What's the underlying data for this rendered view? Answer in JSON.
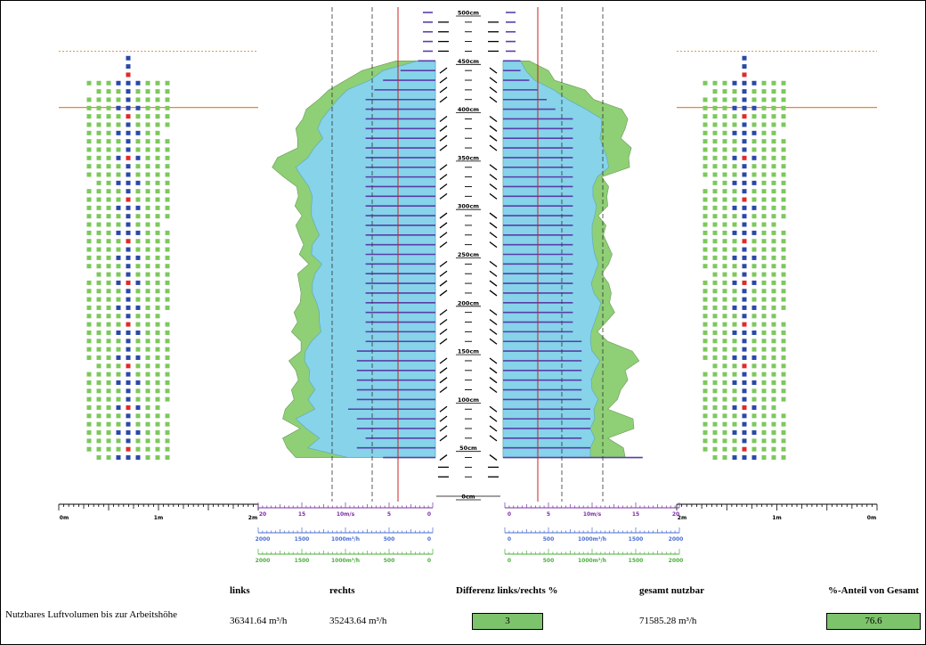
{
  "colors": {
    "green_area": "#8fcf76",
    "blue_area": "#86d3ea",
    "bar_purple": "#5a3ea8",
    "red_line": "#cc2222",
    "orange_line": "#e38a2b",
    "square_green": "#7cc85c",
    "square_blue": "#2a48a8",
    "square_red": "#e02a2a",
    "axis_purple": "#7b2fa8",
    "axis_blue": "#4a6ed0",
    "axis_green": "#4caf3c",
    "summary_box": "#7dc36b"
  },
  "chart_data": {
    "type": "area",
    "height_axis": {
      "unit": "cm",
      "range": [
        0,
        500
      ],
      "labeled_ticks": [
        "500cm",
        "450cm",
        "400cm",
        "350cm",
        "300cm",
        "250cm",
        "200cm",
        "150cm",
        "100cm",
        "50cm",
        "0cm"
      ]
    },
    "distance_axis": {
      "labels": [
        "0m",
        "1m",
        "2m"
      ],
      "range_m": [
        0,
        2
      ]
    },
    "velocity_axis": {
      "left_labels": [
        "20",
        "15",
        "10m/s",
        "5",
        "0"
      ],
      "right_labels": [
        "0",
        "5",
        "10m/s",
        "15",
        "20"
      ],
      "range": [
        0,
        20
      ]
    },
    "flow_axis_blue": {
      "left_labels": [
        "2000",
        "1500",
        "1000m³/h",
        "500",
        "0"
      ],
      "right_labels": [
        "0",
        "500",
        "1000m³/h",
        "1500",
        "2000"
      ],
      "range": [
        0,
        2000
      ]
    },
    "flow_axis_green": {
      "left_labels": [
        "2000",
        "1500",
        "1000m³/h",
        "500",
        "0"
      ],
      "right_labels": [
        "0",
        "500",
        "1000m³/h",
        "1500",
        "2000"
      ],
      "range": [
        0,
        2000
      ]
    },
    "heights_cm": [
      40,
      50,
      60,
      70,
      80,
      90,
      100,
      110,
      120,
      130,
      140,
      150,
      160,
      170,
      180,
      190,
      200,
      210,
      220,
      230,
      240,
      250,
      260,
      270,
      280,
      290,
      300,
      310,
      320,
      330,
      340,
      350,
      360,
      370,
      380,
      390,
      400,
      410,
      420,
      430,
      440,
      450
    ],
    "left_green_flow": [
      1600,
      1700,
      1750,
      1550,
      1750,
      1720,
      1620,
      1650,
      1570,
      1600,
      1680,
      1540,
      1540,
      1650,
      1580,
      1620,
      1550,
      1540,
      1560,
      1580,
      1450,
      1560,
      1510,
      1560,
      1600,
      1530,
      1610,
      1570,
      1590,
      1740,
      1870,
      1810,
      1580,
      1580,
      1600,
      1520,
      1480,
      1340,
      1220,
      1030,
      840,
      450
    ],
    "left_blue_flow": [
      1000,
      1460,
      1330,
      1480,
      1600,
      1380,
      1460,
      1380,
      1450,
      1440,
      1500,
      1490,
      1420,
      1310,
      1330,
      1330,
      1360,
      1410,
      1410,
      1380,
      1300,
      1420,
      1410,
      1330,
      1380,
      1420,
      1420,
      1410,
      1450,
      1530,
      1600,
      1460,
      1390,
      1290,
      1350,
      1300,
      1210,
      1120,
      1010,
      750,
      600,
      200
    ],
    "left_velocity": [
      6,
      9,
      8,
      9,
      9,
      10,
      9,
      9,
      9,
      9,
      9,
      9,
      8,
      8,
      8,
      8,
      8,
      8,
      8,
      8,
      8,
      8,
      8,
      8,
      8,
      8,
      8,
      8,
      8,
      8,
      8,
      8,
      8,
      8,
      8,
      8,
      8,
      8,
      7,
      6,
      4,
      2
    ],
    "right_green_flow": [
      1400,
      1380,
      1200,
      1500,
      1490,
      1200,
      1310,
      1350,
      1430,
      1400,
      1560,
      1480,
      1200,
      1080,
      1180,
      1280,
      1220,
      1240,
      1210,
      1130,
      1210,
      1250,
      1200,
      1150,
      1180,
      1090,
      1200,
      1190,
      1210,
      1130,
      1450,
      1440,
      1470,
      1350,
      1400,
      1430,
      1360,
      1040,
      940,
      590,
      520,
      300
    ],
    "right_blue_flow": [
      1000,
      1000,
      1050,
      1000,
      1050,
      1040,
      1090,
      1020,
      1010,
      1050,
      1110,
      1020,
      1000,
      1010,
      1050,
      1090,
      1120,
      1040,
      1010,
      1050,
      1090,
      1050,
      1030,
      1020,
      1020,
      1050,
      1070,
      1030,
      1030,
      1080,
      1210,
      1190,
      1150,
      1110,
      1130,
      1130,
      950,
      740,
      580,
      360,
      260,
      200
    ],
    "right_velocity": [
      16,
      10,
      9,
      10,
      10,
      10,
      9,
      9,
      9,
      9,
      9,
      9,
      9,
      8,
      8,
      8,
      8,
      8,
      8,
      8,
      8,
      8,
      8,
      8,
      8,
      8,
      8,
      8,
      8,
      8,
      8,
      8,
      8,
      8,
      8,
      8,
      6,
      5,
      4,
      3,
      2,
      2
    ],
    "top_indicator_heights_cm": [
      460,
      470,
      480,
      490,
      500
    ]
  },
  "summary": {
    "row_label": "Nutzbares Luftvolumen bis zur Arbeitshöhe",
    "headers": {
      "links": "links",
      "rechts": "rechts",
      "differenz": "Differenz links/rechts %",
      "gesamt": "gesamt nutzbar",
      "anteil": "%-Anteil von Gesamt"
    },
    "values": {
      "links": "36341.64 m³/h",
      "rechts": "35243.64 m³/h",
      "differenz": "3",
      "gesamt": "71585.28 m³/h",
      "anteil": "76.6"
    }
  }
}
